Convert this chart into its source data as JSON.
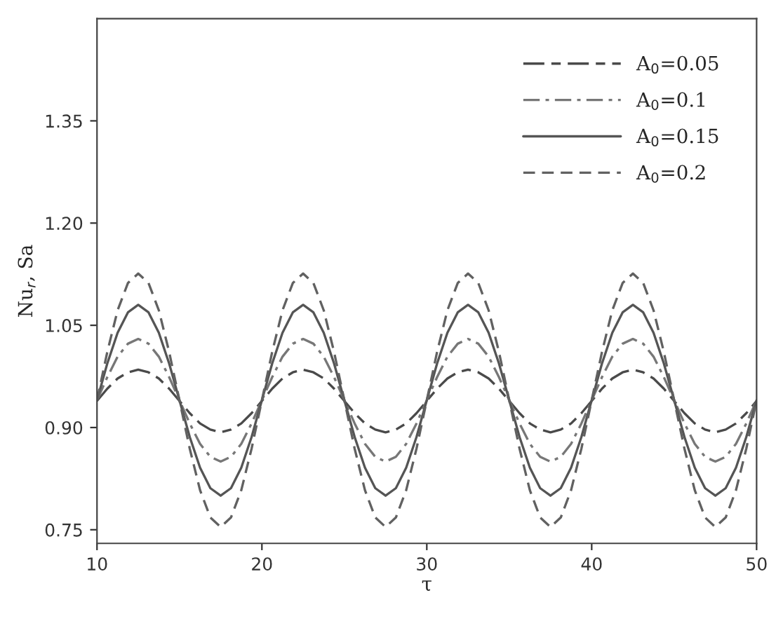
{
  "chart_data": {
    "type": "line",
    "xlabel": "τ",
    "ylabel": "Nu$_{r}$, Sa",
    "x": [
      10,
      10.625,
      11.25,
      11.875,
      12.5,
      13.125,
      13.75,
      14.375,
      15,
      15.625,
      16.25,
      16.875,
      17.5,
      18.125,
      18.75,
      19.375,
      20,
      20.625,
      21.25,
      21.875,
      22.5,
      23.125,
      23.75,
      24.375,
      25,
      25.625,
      26.25,
      26.875,
      27.5,
      28.125,
      28.75,
      29.375,
      30,
      30.625,
      31.25,
      31.875,
      32.5,
      33.125,
      33.75,
      34.375,
      35,
      35.625,
      36.25,
      36.875,
      37.5,
      38.125,
      38.75,
      39.375,
      40,
      40.625,
      41.25,
      41.875,
      42.5,
      43.125,
      43.75,
      44.375,
      45,
      45.625,
      46.25,
      46.875,
      47.5,
      48.125,
      48.75,
      49.375,
      50
    ],
    "series": [
      {
        "name": "A$_{0}$=0.05",
        "color": "#4a4a4a",
        "line_style": "longdash",
        "values": [
          0.939,
          0.957,
          0.972,
          0.981,
          0.985,
          0.981,
          0.972,
          0.957,
          0.939,
          0.921,
          0.906,
          0.897,
          0.893,
          0.897,
          0.906,
          0.921,
          0.939,
          0.957,
          0.972,
          0.981,
          0.985,
          0.981,
          0.972,
          0.957,
          0.939,
          0.921,
          0.906,
          0.897,
          0.893,
          0.897,
          0.906,
          0.921,
          0.939,
          0.957,
          0.972,
          0.981,
          0.985,
          0.981,
          0.972,
          0.957,
          0.939,
          0.921,
          0.906,
          0.897,
          0.893,
          0.897,
          0.906,
          0.921,
          0.939,
          0.957,
          0.972,
          0.981,
          0.985,
          0.981,
          0.972,
          0.957,
          0.939,
          0.921,
          0.906,
          0.897,
          0.893,
          0.897,
          0.906,
          0.921,
          0.939
        ]
      },
      {
        "name": "A$_{0}$=0.1",
        "color": "#777777",
        "line_style": "dashdot",
        "values": [
          0.94,
          0.974,
          1.004,
          1.023,
          1.03,
          1.023,
          1.004,
          0.974,
          0.94,
          0.906,
          0.876,
          0.857,
          0.85,
          0.857,
          0.876,
          0.906,
          0.94,
          0.974,
          1.004,
          1.023,
          1.03,
          1.023,
          1.004,
          0.974,
          0.94,
          0.906,
          0.876,
          0.857,
          0.85,
          0.857,
          0.876,
          0.906,
          0.94,
          0.974,
          1.004,
          1.023,
          1.03,
          1.023,
          1.004,
          0.974,
          0.94,
          0.906,
          0.876,
          0.857,
          0.85,
          0.857,
          0.876,
          0.906,
          0.94,
          0.974,
          1.004,
          1.023,
          1.03,
          1.023,
          1.004,
          0.974,
          0.94,
          0.906,
          0.876,
          0.857,
          0.85,
          0.857,
          0.876,
          0.906,
          0.94
        ]
      },
      {
        "name": "A$_{0}$=0.15",
        "color": "#555555",
        "line_style": "solid",
        "values": [
          0.94,
          0.994,
          1.039,
          1.069,
          1.08,
          1.069,
          1.039,
          0.994,
          0.94,
          0.886,
          0.841,
          0.811,
          0.8,
          0.811,
          0.841,
          0.886,
          0.94,
          0.994,
          1.039,
          1.069,
          1.08,
          1.069,
          1.039,
          0.994,
          0.94,
          0.886,
          0.841,
          0.811,
          0.8,
          0.811,
          0.841,
          0.886,
          0.94,
          0.994,
          1.039,
          1.069,
          1.08,
          1.069,
          1.039,
          0.994,
          0.94,
          0.886,
          0.841,
          0.811,
          0.8,
          0.811,
          0.841,
          0.886,
          0.94,
          0.994,
          1.039,
          1.069,
          1.08,
          1.069,
          1.039,
          0.994,
          0.94,
          0.886,
          0.841,
          0.811,
          0.8,
          0.811,
          0.841,
          0.886,
          0.94
        ]
      },
      {
        "name": "A$_{0}$=0.2",
        "color": "#616161",
        "line_style": "dashed",
        "values": [
          0.94,
          1.011,
          1.072,
          1.112,
          1.126,
          1.112,
          1.072,
          1.011,
          0.94,
          0.869,
          0.808,
          0.768,
          0.754,
          0.768,
          0.808,
          0.869,
          0.94,
          1.011,
          1.072,
          1.112,
          1.126,
          1.112,
          1.072,
          1.011,
          0.94,
          0.869,
          0.808,
          0.768,
          0.754,
          0.768,
          0.808,
          0.869,
          0.94,
          1.011,
          1.072,
          1.112,
          1.126,
          1.112,
          1.072,
          1.011,
          0.94,
          0.869,
          0.808,
          0.768,
          0.754,
          0.768,
          0.808,
          0.869,
          0.94,
          1.011,
          1.072,
          1.112,
          1.126,
          1.112,
          1.072,
          1.011,
          0.94,
          0.869,
          0.808,
          0.768,
          0.754,
          0.768,
          0.808,
          0.869,
          0.94
        ]
      }
    ],
    "xlim": [
      10,
      50
    ],
    "xticks": [
      10,
      20,
      30,
      40,
      50
    ],
    "ylim": [
      0.73,
      1.5
    ],
    "yticks": [
      {
        "value": 0.75,
        "label": "0.75"
      },
      {
        "value": 0.9,
        "label": "0.90"
      },
      {
        "value": 1.05,
        "label": "1.05"
      },
      {
        "value": 1.2,
        "label": "1.20"
      },
      {
        "value": 1.35,
        "label": "1.35"
      }
    ],
    "legend": "top right",
    "grid": false,
    "marker": "none"
  }
}
